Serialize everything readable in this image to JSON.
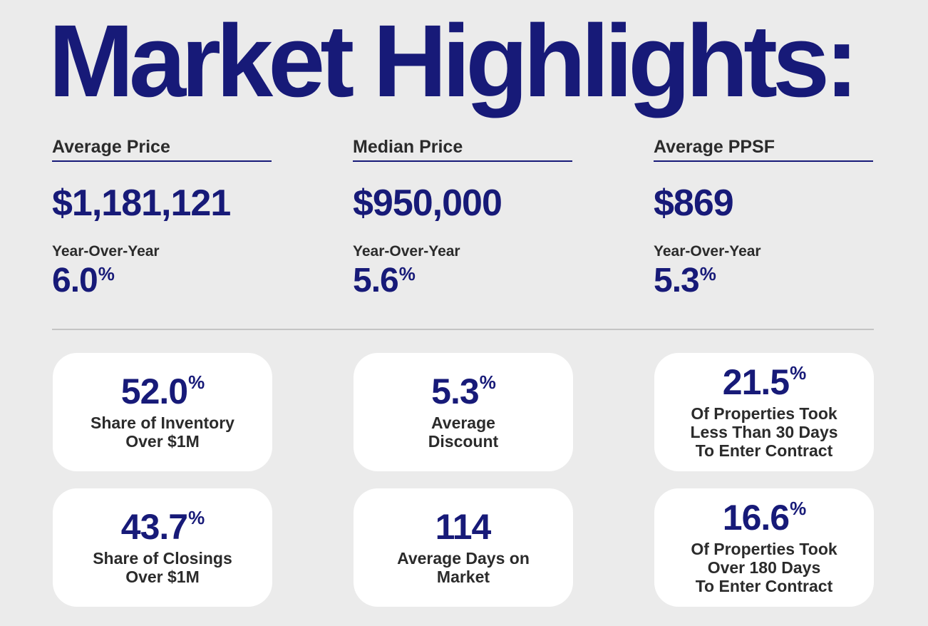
{
  "title": "Market Highlights:",
  "stats": [
    {
      "heading": "Average Price",
      "value": "$1,181,121",
      "yoy_label": "Year-Over-Year",
      "yoy_value": "6.0",
      "yoy_unit": "%"
    },
    {
      "heading": "Median Price",
      "value": "$950,000",
      "yoy_label": "Year-Over-Year",
      "yoy_value": "5.6",
      "yoy_unit": "%"
    },
    {
      "heading": "Average PPSF",
      "value": "$869",
      "yoy_label": "Year-Over-Year",
      "yoy_value": "5.3",
      "yoy_unit": "%"
    }
  ],
  "cards": [
    {
      "value": "52.0",
      "unit": "%",
      "label": "Share of Inventory\nOver $1M"
    },
    {
      "value": "5.3",
      "unit": "%",
      "label": "Average\nDiscount"
    },
    {
      "value": "21.5",
      "unit": "%",
      "label": "Of Properties Took\nLess Than 30 Days\nTo Enter Contract"
    },
    {
      "value": "43.7",
      "unit": "%",
      "label": "Share of Closings\nOver $1M"
    },
    {
      "value": "114",
      "unit": "",
      "label": "Average Days on\nMarket"
    },
    {
      "value": "16.6",
      "unit": "%",
      "label": "Of Properties Took\nOver 180 Days\nTo Enter Contract"
    }
  ]
}
